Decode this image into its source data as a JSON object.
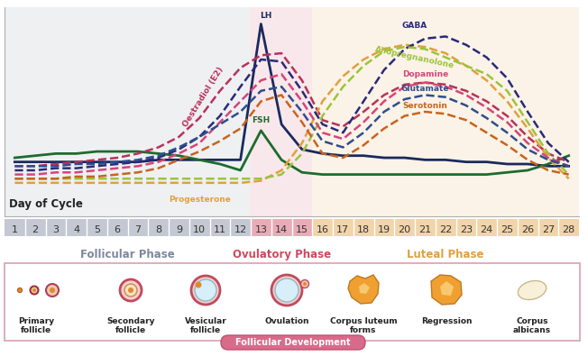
{
  "chart_data": {
    "type": "line",
    "xlabel": "Day of Cycle",
    "x": [
      1,
      2,
      3,
      4,
      5,
      6,
      7,
      8,
      9,
      10,
      11,
      12,
      13,
      14,
      15,
      16,
      17,
      18,
      19,
      20,
      21,
      22,
      23,
      24,
      25,
      26,
      27,
      28
    ],
    "xlim": [
      0.5,
      28.5
    ],
    "xticks": [
      1,
      2,
      3,
      4,
      5,
      6,
      7,
      8,
      9,
      10,
      11,
      12,
      13,
      14,
      15,
      16,
      17,
      18,
      19,
      20,
      21,
      22,
      23,
      24,
      25,
      26,
      27,
      28
    ],
    "ylim": [
      0,
      100
    ],
    "tick_labels": "x",
    "series": [
      {
        "name": "LH",
        "color": "#1a2a5e",
        "line_style": "solid",
        "values": [
          26,
          26,
          26,
          26,
          26,
          26,
          26,
          27,
          27,
          27,
          27,
          27,
          92,
          44,
          32,
          30,
          29,
          29,
          28,
          28,
          27,
          27,
          26,
          26,
          25,
          25,
          24,
          24
        ]
      },
      {
        "name": "FSH",
        "color": "#1e6b2e",
        "line_style": "solid",
        "values": [
          28,
          29,
          30,
          30,
          31,
          31,
          31,
          30,
          29,
          27,
          25,
          22,
          41,
          27,
          21,
          20,
          20,
          20,
          20,
          20,
          20,
          20,
          20,
          20,
          21,
          22,
          25,
          29
        ]
      },
      {
        "name": "Oestradiol (E2)",
        "color": "#b8325a",
        "line_style": "dashed",
        "values": [
          24,
          24,
          25,
          26,
          27,
          28,
          30,
          33,
          38,
          47,
          60,
          71,
          77,
          78,
          65,
          46,
          43,
          50,
          58,
          63,
          64,
          63,
          60,
          55,
          48,
          38,
          30,
          26
        ]
      },
      {
        "name": "Progesterone",
        "color": "#e0a040",
        "line_style": "dashed",
        "values": [
          16,
          16,
          16,
          16,
          16,
          16,
          16,
          16,
          16,
          16,
          16,
          16,
          17,
          22,
          35,
          55,
          67,
          75,
          80,
          82,
          81,
          78,
          72,
          65,
          55,
          42,
          28,
          18
        ]
      },
      {
        "name": "GABA",
        "color": "#2a2a7a",
        "line_style": "dashed",
        "values": [
          22,
          22,
          23,
          23,
          24,
          25,
          26,
          28,
          32,
          38,
          48,
          62,
          75,
          74,
          60,
          44,
          40,
          55,
          70,
          80,
          85,
          86,
          82,
          76,
          66,
          50,
          35,
          26
        ]
      },
      {
        "name": "Allopregnanolone",
        "color": "#9cc43c",
        "line_style": "dashed",
        "values": [
          18,
          18,
          18,
          18,
          18,
          18,
          18,
          18,
          18,
          18,
          18,
          18,
          18,
          20,
          30,
          48,
          62,
          72,
          79,
          81,
          80,
          76,
          72,
          68,
          60,
          45,
          30,
          20
        ]
      },
      {
        "name": "Dopamine",
        "color": "#d6457a",
        "line_style": "dashed",
        "values": [
          20,
          20,
          21,
          21,
          22,
          23,
          24,
          26,
          30,
          35,
          45,
          55,
          65,
          68,
          55,
          40,
          37,
          45,
          55,
          62,
          64,
          62,
          58,
          52,
          45,
          35,
          28,
          24
        ]
      },
      {
        "name": "Glutamate",
        "color": "#2f4e8c",
        "line_style": "dashed",
        "values": [
          24,
          24,
          24,
          25,
          25,
          26,
          27,
          29,
          33,
          38,
          44,
          50,
          60,
          62,
          50,
          36,
          33,
          40,
          50,
          56,
          58,
          57,
          53,
          47,
          40,
          32,
          27,
          24
        ]
      },
      {
        "name": "Serotonin",
        "color": "#c8641e",
        "line_style": "dashed",
        "values": [
          18,
          18,
          18,
          19,
          19,
          20,
          21,
          23,
          27,
          31,
          36,
          42,
          55,
          58,
          45,
          30,
          28,
          34,
          42,
          48,
          50,
          49,
          46,
          40,
          34,
          27,
          22,
          20
        ]
      }
    ],
    "phases": [
      {
        "name": "Follicular Phase",
        "start": 1,
        "end": 12,
        "color": "#7d879c"
      },
      {
        "name": "Ovulatory Phase",
        "start": 13,
        "end": 15,
        "color": "#d0485f"
      },
      {
        "name": "Luteal Phase",
        "start": 16,
        "end": 28,
        "color": "#e0a040"
      }
    ],
    "stages_title": "Follicular Development",
    "stages": [
      "Primary\nfollicle",
      "Secondary\nfollicle",
      "Vesicular\nfollicle",
      "Ovulation",
      "Corpus luteum\nforms",
      "Regression",
      "Corpus\nalbicans"
    ]
  }
}
